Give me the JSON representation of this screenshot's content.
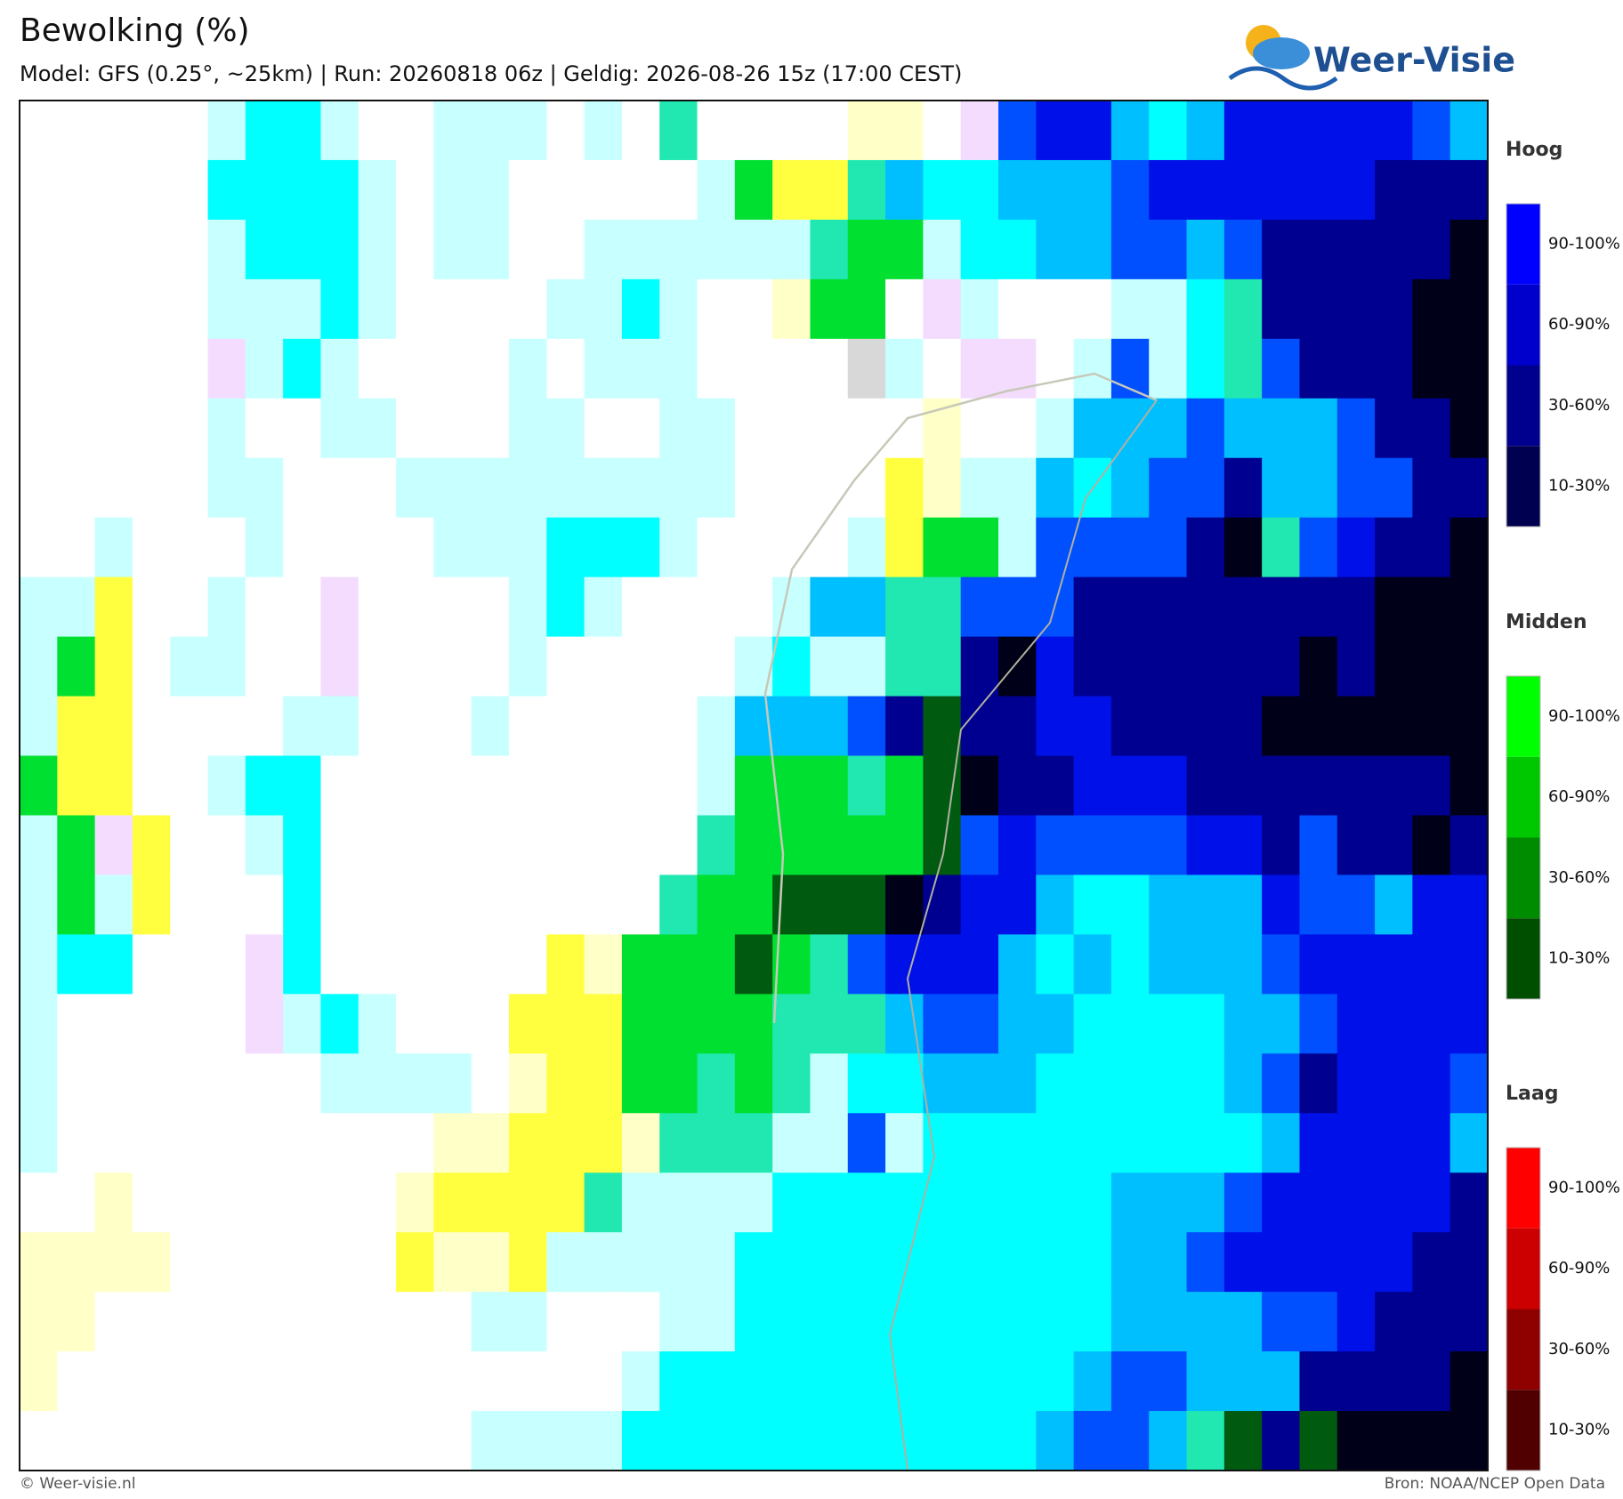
{
  "header": {
    "title": "Bewolking (%)",
    "subtitle": "Model: GFS (0.25°, ~25km)  |  Run: 20260818 06z  |  Geldig: 2026-08-26 15z (17:00 CEST)",
    "logo": "Weer-Visie"
  },
  "legend": [
    {
      "title": "Hoog",
      "items": [
        "90-100%",
        "60-90%",
        "30-60%",
        "10-30%"
      ]
    },
    {
      "title": "Midden",
      "items": [
        "90-100%",
        "60-90%",
        "30-60%",
        "10-30%"
      ]
    },
    {
      "title": "Laag",
      "items": [
        "90-100%",
        "60-90%",
        "30-60%",
        "10-30%"
      ]
    }
  ],
  "footer": {
    "left": "© Weer-visie.nl",
    "right": "Bron: NOAA/NCEP Open Data"
  }
}
